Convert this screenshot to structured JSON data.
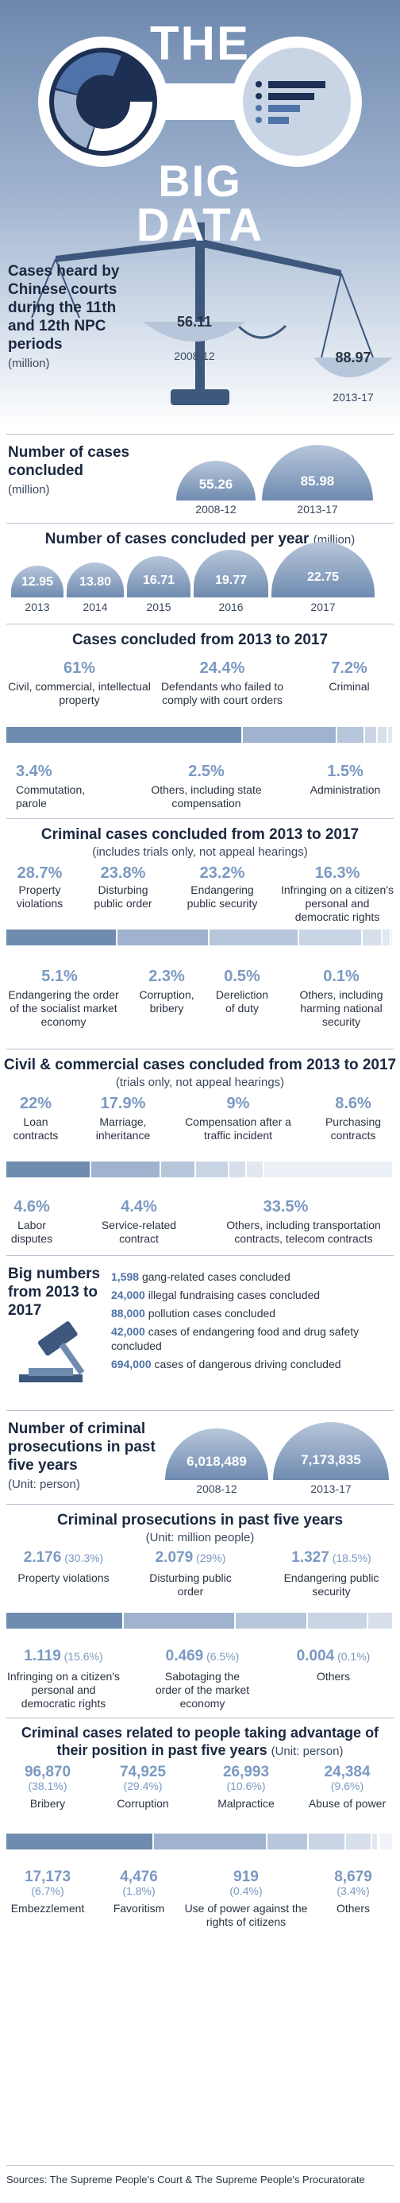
{
  "header": {
    "title_line1": "THE",
    "title_line2": "BIG",
    "title_line3": "DATA"
  },
  "cases_heard": {
    "title": "Cases heard by Chinese courts during the 11th and 12th NPC periods",
    "unit": "(million)",
    "items": [
      {
        "value": "56.11",
        "period": "2008-12"
      },
      {
        "value": "88.97",
        "period": "2013-17"
      }
    ]
  },
  "cases_concluded": {
    "title": "Number of cases concluded",
    "unit": "(million)",
    "items": [
      {
        "value": "55.26",
        "period": "2008-12"
      },
      {
        "value": "85.98",
        "period": "2013-17"
      }
    ]
  },
  "per_year": {
    "title": "Number of cases concluded per year",
    "unit": "(million)",
    "items": [
      {
        "value": "12.95",
        "year": "2013"
      },
      {
        "value": "13.80",
        "year": "2014"
      },
      {
        "value": "16.71",
        "year": "2015"
      },
      {
        "value": "19.77",
        "year": "2016"
      },
      {
        "value": "22.75",
        "year": "2017"
      }
    ]
  },
  "concluded_2013_2017": {
    "title": "Cases concluded from 2013 to 2017",
    "items": [
      {
        "pct": "61%",
        "label": "Civil, commercial, intellectual property",
        "v": 61
      },
      {
        "pct": "24.4%",
        "label": "Defendants who failed to comply with court orders",
        "v": 24.4
      },
      {
        "pct": "7.2%",
        "label": "Criminal",
        "v": 7.2
      },
      {
        "pct": "3.4%",
        "label": "Commutation, parole",
        "v": 3.4
      },
      {
        "pct": "2.5%",
        "label": "Others, including state compensation",
        "v": 2.5
      },
      {
        "pct": "1.5%",
        "label": "Administration",
        "v": 1.5
      }
    ]
  },
  "criminal_2013_2017": {
    "title": "Criminal cases concluded from 2013 to 2017",
    "subtitle": "(includes trials only, not appeal hearings)",
    "items": [
      {
        "pct": "28.7%",
        "label": "Property violations",
        "v": 28.7
      },
      {
        "pct": "23.8%",
        "label": "Disturbing public order",
        "v": 23.8
      },
      {
        "pct": "23.2%",
        "label": "Endangering public security",
        "v": 23.2
      },
      {
        "pct": "16.3%",
        "label": "Infringing on a citizen's personal and democratic rights",
        "v": 16.3
      },
      {
        "pct": "5.1%",
        "label": "Endangering the order of the socialist market economy",
        "v": 5.1
      },
      {
        "pct": "2.3%",
        "label": "Corruption, bribery",
        "v": 2.3
      },
      {
        "pct": "0.5%",
        "label": "Dereliction of duty",
        "v": 0.5
      },
      {
        "pct": "0.1%",
        "label": "Others, including harming national security",
        "v": 0.1
      }
    ]
  },
  "civil_2013_2017": {
    "title": "Civil & commercial cases concluded from 2013 to 2017",
    "subtitle": "(trials only, not appeal hearings)",
    "items": [
      {
        "pct": "22%",
        "label": "Loan contracts",
        "v": 22
      },
      {
        "pct": "17.9%",
        "label": "Marriage, inheritance",
        "v": 17.9
      },
      {
        "pct": "9%",
        "label": "Compensation after a traffic incident",
        "v": 9
      },
      {
        "pct": "8.6%",
        "label": "Purchasing contracts",
        "v": 8.6
      },
      {
        "pct": "4.6%",
        "label": "Labor disputes",
        "v": 4.6
      },
      {
        "pct": "4.4%",
        "label": "Service-related contract",
        "v": 4.4
      },
      {
        "pct": "33.5%",
        "label": "Others, including transportation contracts, telecom contracts",
        "v": 33.5
      }
    ]
  },
  "big_numbers": {
    "title": "Big numbers from 2013 to 2017",
    "items": [
      {
        "num": "1,598",
        "text": "gang-related cases concluded"
      },
      {
        "num": "24,000",
        "text": "illegal fundraising cases concluded"
      },
      {
        "num": "88,000",
        "text": "pollution cases concluded"
      },
      {
        "num": "42,000",
        "text": "cases of endangering food and drug safety concluded"
      },
      {
        "num": "694,000",
        "text": "cases of dangerous driving concluded"
      }
    ]
  },
  "prosecutions": {
    "title": "Number of criminal prosecutions in past five years",
    "unit": "(Unit: person)",
    "items": [
      {
        "value": "6,018,489",
        "period": "2008-12"
      },
      {
        "value": "7,173,835",
        "period": "2013-17"
      }
    ]
  },
  "prosecutions_breakdown": {
    "title": "Criminal prosecutions in past five years",
    "subtitle": "(Unit: million people)",
    "items": [
      {
        "val": "2.176",
        "pct": "(30.3%)",
        "label": "Property violations",
        "v": 30.3
      },
      {
        "val": "2.079",
        "pct": "(29%)",
        "label": "Disturbing public order",
        "v": 29
      },
      {
        "val": "1.327",
        "pct": "(18.5%)",
        "label": "Endangering public security",
        "v": 18.5
      },
      {
        "val": "1.119",
        "pct": "(15.6%)",
        "label": "Infringing on a citizen's personal and democratic rights",
        "v": 15.6
      },
      {
        "val": "0.469",
        "pct": "(6.5%)",
        "label": "Sabotaging the order of the market economy",
        "v": 6.5
      },
      {
        "val": "0.004",
        "pct": "(0.1%)",
        "label": "Others",
        "v": 0.1
      }
    ]
  },
  "position_abuse": {
    "title": "Criminal cases related to people taking advantage of their position in past five years",
    "unit": "(Unit: person)",
    "items": [
      {
        "val": "96,870",
        "pct": "(38.1%)",
        "label": "Bribery",
        "v": 38.1
      },
      {
        "val": "74,925",
        "pct": "(29.4%)",
        "label": "Corruption",
        "v": 29.4
      },
      {
        "val": "26,993",
        "pct": "(10.6%)",
        "label": "Malpractice",
        "v": 10.6
      },
      {
        "val": "24,384",
        "pct": "(9.6%)",
        "label": "Abuse of power",
        "v": 9.6
      },
      {
        "val": "17,173",
        "pct": "(6.7%)",
        "label": "Embezzlement",
        "v": 6.7
      },
      {
        "val": "4,476",
        "pct": "(1.8%)",
        "label": "Favoritism",
        "v": 1.8
      },
      {
        "val": "919",
        "pct": "(0.4%)",
        "label": "Use of power against the rights of citizens",
        "v": 0.4
      },
      {
        "val": "8,679",
        "pct": "(3.4%)",
        "label": "Others",
        "v": 3.4
      }
    ]
  },
  "sources": "Sources: The Supreme People's Court & The Supreme People's Procuratorate",
  "colors": {
    "dark": "#6f8bb0",
    "mid": "#9fb3cf",
    "light": "#c9d5e4",
    "accent": "#7b99c2"
  }
}
